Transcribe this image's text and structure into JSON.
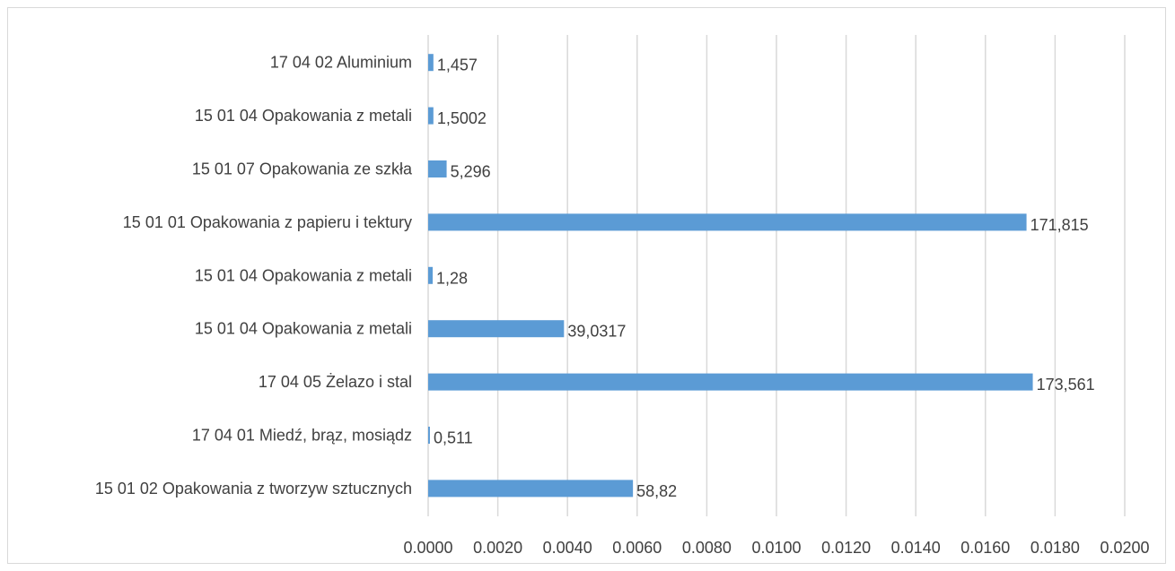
{
  "chart_data": {
    "type": "bar",
    "orientation": "horizontal",
    "title": "",
    "xlabel": "",
    "ylabel": "",
    "xlim": [
      0,
      0.02
    ],
    "x_ticks": [
      "0.0000",
      "0.0020",
      "0.0040",
      "0.0060",
      "0.0080",
      "0.0100",
      "0.0120",
      "0.0140",
      "0.0160",
      "0.0180",
      "0.0200"
    ],
    "grid": true,
    "legend": "none",
    "bar_color": "#5b9bd5",
    "categories": [
      "17 04 02 Aluminium",
      "15 01 04 Opakowania z metali",
      "15 01 07 Opakowania ze szkła",
      "15 01 01 Opakowania z papieru i tektury",
      "15 01 04 Opakowania z metali",
      "15 01 04 Opakowania z metali",
      "17 04 05 Żelazo i stal",
      "17 04 01 Miedź, brąz, mosiądz",
      "15 01 02 Opakowania z tworzyw sztucznych"
    ],
    "values": [
      0.00015,
      0.00015,
      0.00053,
      0.01718,
      0.00013,
      0.0039,
      0.01736,
      5e-05,
      0.00588
    ],
    "data_labels": [
      "1,457",
      "1,5002",
      "5,296",
      "171,815",
      "1,28",
      "39,0317",
      "173,561",
      "0,511",
      "58,82"
    ]
  }
}
